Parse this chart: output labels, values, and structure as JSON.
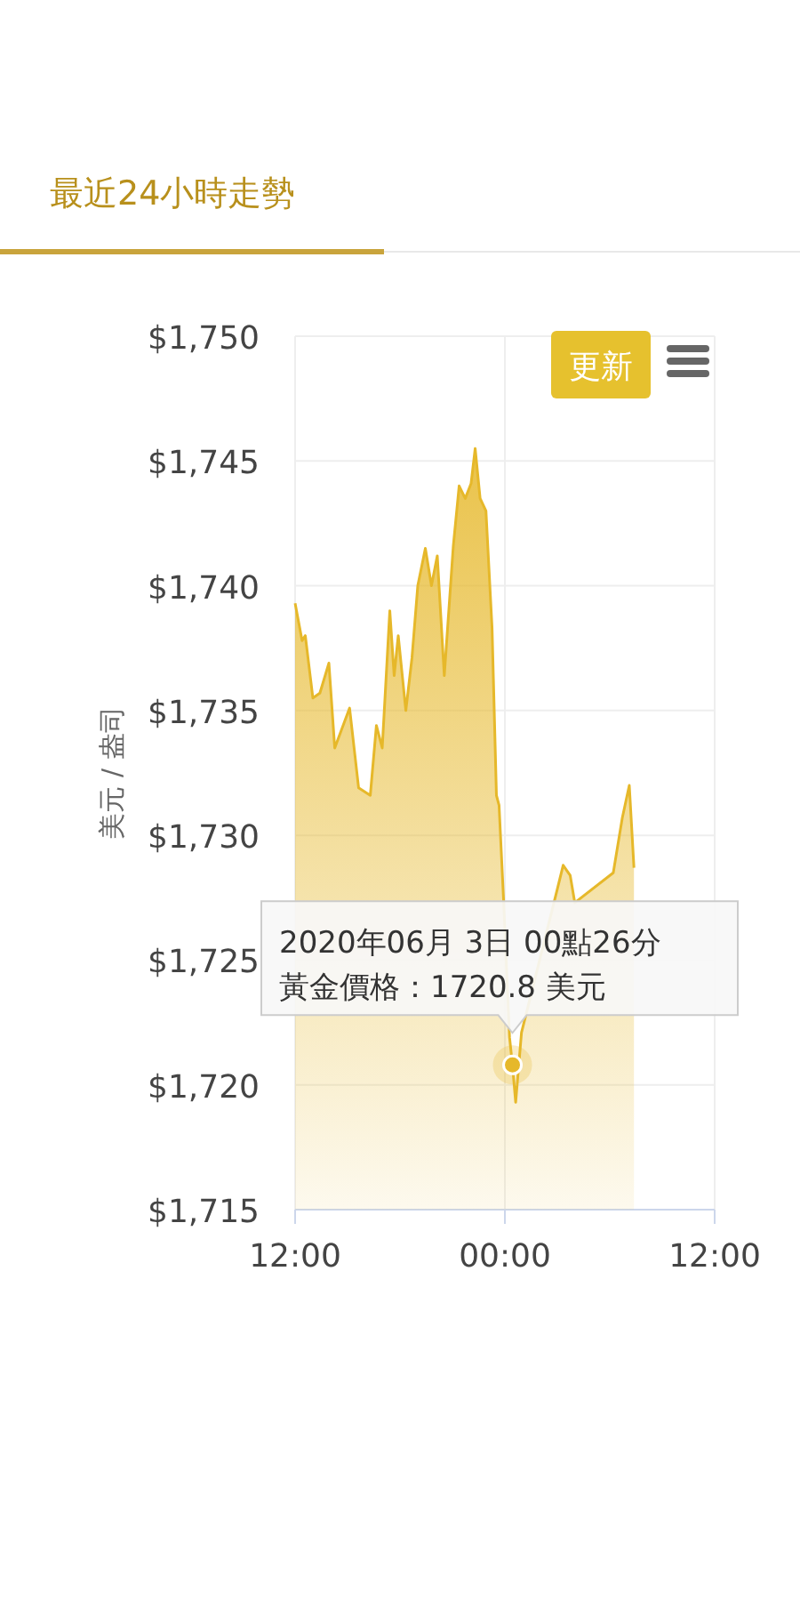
{
  "chart_data": {
    "type": "area",
    "title": "最近24小時走勢",
    "ylabel": "美元 / 盎司",
    "x": [
      "2020-06-02T12:00",
      "2020-06-02T12:24",
      "2020-06-02T12:35",
      "2020-06-02T13:01",
      "2020-06-02T13:25",
      "2020-06-02T13:56",
      "2020-06-02T14:16",
      "2020-06-02T15:07",
      "2020-06-02T15:38",
      "2020-06-02T16:18",
      "2020-06-02T16:39",
      "2020-06-02T16:59",
      "2020-06-02T17:25",
      "2020-06-02T17:40",
      "2020-06-02T17:54",
      "2020-06-02T18:20",
      "2020-06-02T18:41",
      "2020-06-02T19:01",
      "2020-06-02T19:27",
      "2020-06-02T19:48",
      "2020-06-02T20:08",
      "2020-06-02T20:32",
      "2020-06-02T21:03",
      "2020-06-02T21:23",
      "2020-06-02T21:44",
      "2020-06-02T22:04",
      "2020-06-02T22:18",
      "2020-06-02T22:35",
      "2020-06-02T22:55",
      "2020-06-02T23:16",
      "2020-06-02T23:31",
      "2020-06-02T23:40",
      "2020-06-02T23:56",
      "2020-06-03T00:16",
      "2020-06-03T00:26",
      "2020-06-03T00:37",
      "2020-06-03T00:57",
      "2020-06-03T02:59",
      "2020-06-03T03:20",
      "2020-06-03T03:44",
      "2020-06-03T04:00",
      "2020-06-03T06:12",
      "2020-06-03T06:43",
      "2020-06-03T07:07",
      "2020-06-03T07:23"
    ],
    "series": [
      {
        "color": "#e6b82a",
        "values": [
          1739.3,
          1737.8,
          1738.0,
          1735.5,
          1735.7,
          1736.9,
          1733.5,
          1735.1,
          1731.9,
          1731.6,
          1734.4,
          1733.5,
          1739.0,
          1736.4,
          1738.0,
          1735.0,
          1737.1,
          1740.0,
          1741.5,
          1740.0,
          1741.2,
          1736.4,
          1741.6,
          1744.0,
          1743.5,
          1744.1,
          1745.5,
          1743.5,
          1743.0,
          1738.3,
          1731.6,
          1731.2,
          1727.3,
          1721.9,
          1720.8,
          1719.3,
          1722.1,
          1727.8,
          1728.8,
          1728.4,
          1727.3,
          1728.5,
          1730.7,
          1732.0,
          1728.7
        ]
      }
    ],
    "xlim": [
      "2020-06-02T12:00",
      "2020-06-03T12:00"
    ],
    "xticks": [
      {
        "value": "2020-06-02T12:00",
        "label": "12:00"
      },
      {
        "value": "2020-06-03T00:00",
        "label": "00:00"
      },
      {
        "value": "2020-06-03T12:00",
        "label": "12:00"
      }
    ],
    "ylim": [
      1715,
      1750
    ],
    "yticks": [
      {
        "value": 1715,
        "label": "$1,715"
      },
      {
        "value": 1720,
        "label": "$1,720"
      },
      {
        "value": 1725,
        "label": "$1,725"
      },
      {
        "value": 1730,
        "label": "$1,730"
      },
      {
        "value": 1735,
        "label": "$1,735"
      },
      {
        "value": 1740,
        "label": "$1,740"
      },
      {
        "value": 1745,
        "label": "$1,745"
      },
      {
        "value": 1750,
        "label": "$1,750"
      }
    ],
    "grid": true,
    "annotations": [
      "2020年06月 3日 00點26分",
      {
        "text": "黃金價格：1720.8 美元",
        "x": "2020-06-03T00:26",
        "y": 1720.8
      },
      "更新"
    ]
  }
}
